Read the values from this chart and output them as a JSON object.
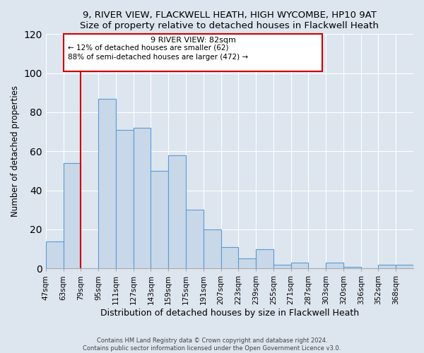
{
  "title1": "9, RIVER VIEW, FLACKWELL HEATH, HIGH WYCOMBE, HP10 9AT",
  "title2": "Size of property relative to detached houses in Flackwell Heath",
  "xlabel": "Distribution of detached houses by size in Flackwell Heath",
  "ylabel": "Number of detached properties",
  "bin_labels": [
    "47sqm",
    "63sqm",
    "79sqm",
    "95sqm",
    "111sqm",
    "127sqm",
    "143sqm",
    "159sqm",
    "175sqm",
    "191sqm",
    "207sqm",
    "223sqm",
    "239sqm",
    "255sqm",
    "271sqm",
    "287sqm",
    "303sqm",
    "320sqm",
    "336sqm",
    "352sqm",
    "368sqm"
  ],
  "bar_values": [
    14,
    54,
    0,
    87,
    71,
    72,
    50,
    58,
    30,
    20,
    11,
    5,
    10,
    2,
    3,
    0,
    3,
    1,
    0,
    2,
    2
  ],
  "bar_color": "#c8d8e8",
  "bar_edge_color": "#5b9bd5",
  "property_line_label": "9 RIVER VIEW: 82sqm",
  "annotation_line1": "← 12% of detached houses are smaller (62)",
  "annotation_line2": "88% of semi-detached houses are larger (472) →",
  "vline_color": "#cc0000",
  "box_edge_color": "#cc0000",
  "ylim": [
    0,
    120
  ],
  "yticks": [
    0,
    20,
    40,
    60,
    80,
    100,
    120
  ],
  "footer1": "Contains HM Land Registry data © Crown copyright and database right 2024.",
  "footer2": "Contains public sector information licensed under the Open Government Licence v3.0.",
  "bg_color": "#dde5ef",
  "plot_bg_color": "#dde5ef",
  "grid_color": "#ffffff",
  "title_fontsize": 9.5,
  "xlabel_fontsize": 9,
  "ylabel_fontsize": 8.5
}
